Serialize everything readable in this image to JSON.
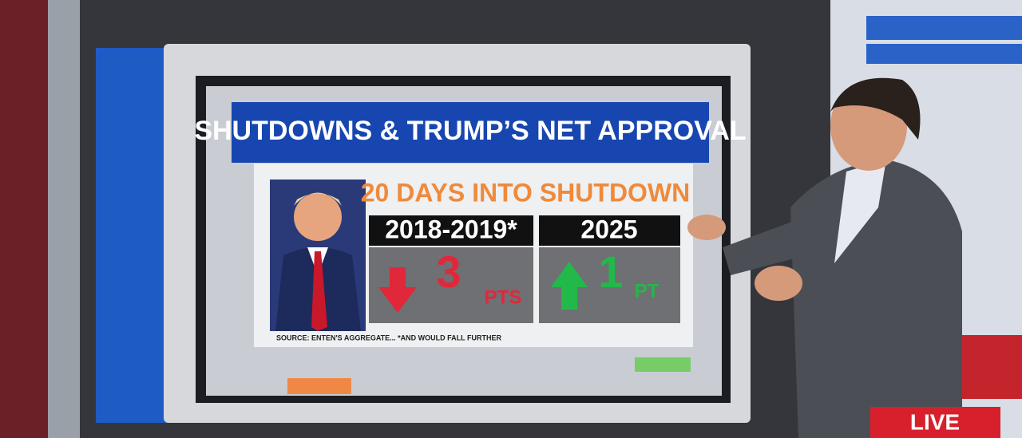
{
  "screen": {
    "title": "SHUTDOWNS & TRUMP’S NET APPROVAL",
    "headline": "20 DAYS INTO SHUTDOWN",
    "columns": [
      {
        "label": "2018-2019*",
        "change": 3,
        "unit": "PTS"
      },
      {
        "label": "2025",
        "change": 1,
        "unit": "PT"
      }
    ],
    "source": "SOURCE: ENTEN'S AGGREGATE... *AND WOULD FALL FURTHER"
  },
  "badge": "LIVE"
}
